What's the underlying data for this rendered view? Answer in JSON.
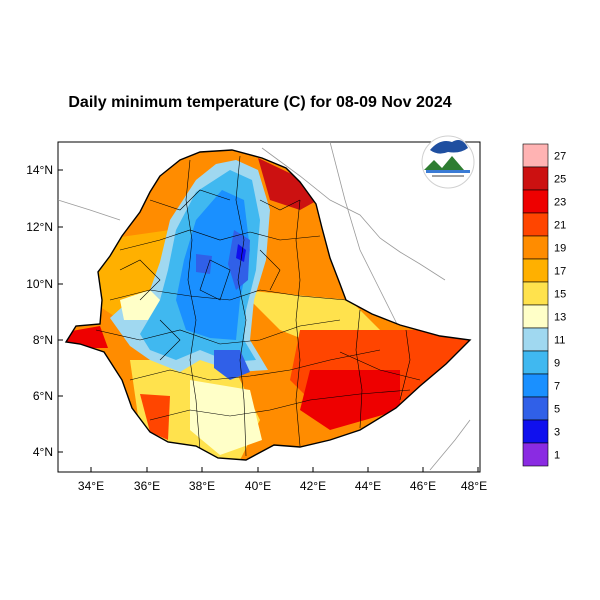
{
  "title": "Daily minimum temperature (C) for 08-09 Nov 2024",
  "map": {
    "lat_labels": [
      "14°N",
      "12°N",
      "10°N",
      "8°N",
      "6°N",
      "4°N"
    ],
    "lon_labels": [
      "34°E",
      "36°E",
      "38°E",
      "40°E",
      "42°E",
      "44°E",
      "46°E",
      "48°E"
    ]
  },
  "colorbar": {
    "labels": [
      "27",
      "25",
      "23",
      "21",
      "19",
      "17",
      "15",
      "13",
      "11",
      "9",
      "7",
      "5",
      "3",
      "1"
    ],
    "colors": [
      "#ffb3b3",
      "#cc1111",
      "#ee0000",
      "#ff4500",
      "#ff8c00",
      "#ffb000",
      "#ffe24d",
      "#ffffc8",
      "#a0d8f0",
      "#40b8f0",
      "#1a90ff",
      "#3060e8",
      "#1010ee",
      "#8a2be2"
    ]
  },
  "logo": {
    "name": "agency-logo-icon"
  }
}
